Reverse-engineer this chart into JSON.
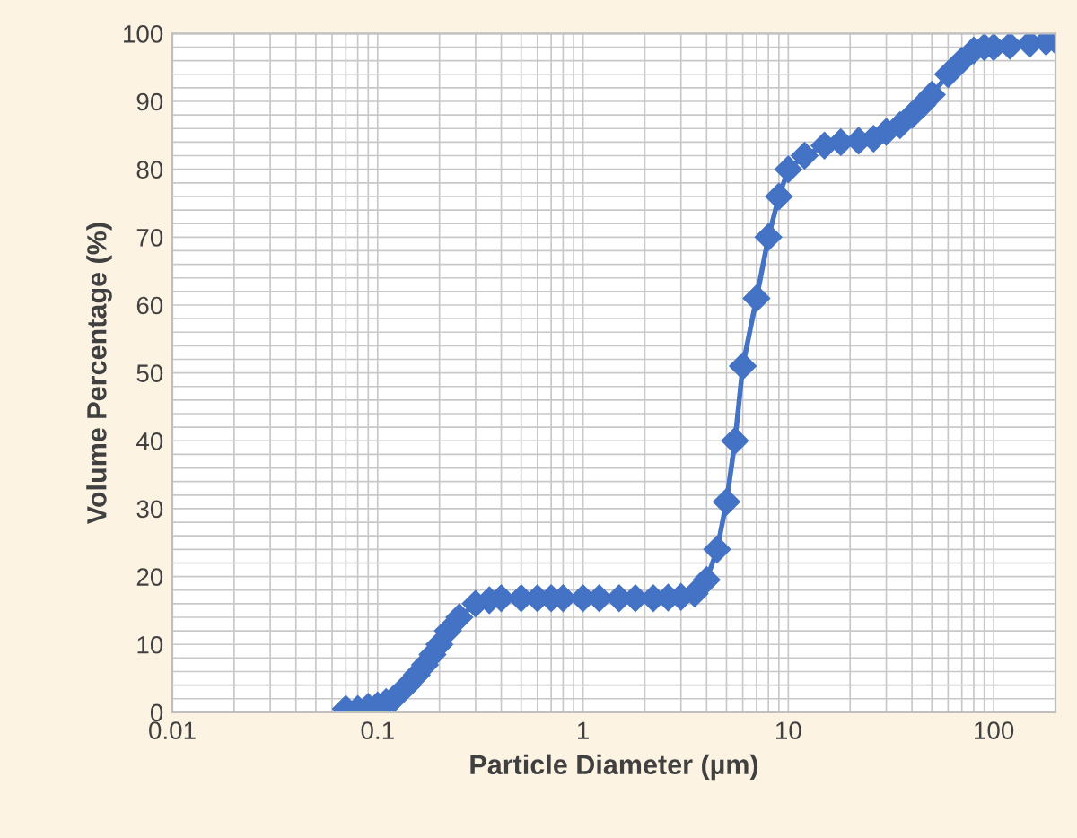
{
  "chart_data": {
    "type": "line",
    "xlabel": "Particle Diameter (µm)",
    "ylabel": "Volume Percentage (%)",
    "log": "x",
    "xlim": [
      0.01,
      200
    ],
    "xticks": [
      0.01,
      0.1,
      1,
      10,
      100
    ],
    "ylim": [
      0,
      100
    ],
    "yticks": [
      0,
      10,
      20,
      30,
      40,
      50,
      60,
      70,
      80,
      90,
      100
    ],
    "grid": true,
    "marker": "diamond",
    "line_style": "solid",
    "series": [
      {
        "color": "#4472c4",
        "x": [
          0.07,
          0.08,
          0.09,
          0.1,
          0.11,
          0.12,
          0.14,
          0.155,
          0.17,
          0.185,
          0.2,
          0.22,
          0.25,
          0.3,
          0.35,
          0.4,
          0.5,
          0.6,
          0.7,
          0.8,
          1,
          1.2,
          1.5,
          1.8,
          2.2,
          2.6,
          3,
          3.5,
          4,
          4.5,
          5,
          5.5,
          6,
          7,
          8,
          9,
          10,
          12,
          15,
          18,
          22,
          26,
          30,
          35,
          40,
          45,
          50,
          60,
          70,
          80,
          90,
          100,
          120,
          150,
          180,
          200
        ],
        "values": [
          0.5,
          0.5,
          0.8,
          1,
          1.5,
          2,
          4,
          5.5,
          7,
          8.5,
          10,
          12,
          14,
          16,
          16.5,
          16.8,
          16.8,
          16.8,
          16.8,
          16.8,
          16.8,
          16.8,
          16.8,
          16.8,
          16.8,
          16.9,
          17,
          17.5,
          19.5,
          24,
          31,
          40,
          51,
          61,
          70,
          76,
          80,
          82,
          83.5,
          84,
          84.2,
          84.5,
          85.5,
          86.5,
          88,
          89.5,
          91,
          94,
          96,
          97.5,
          98,
          98,
          98.2,
          98.5,
          98.8,
          99
        ]
      }
    ]
  }
}
